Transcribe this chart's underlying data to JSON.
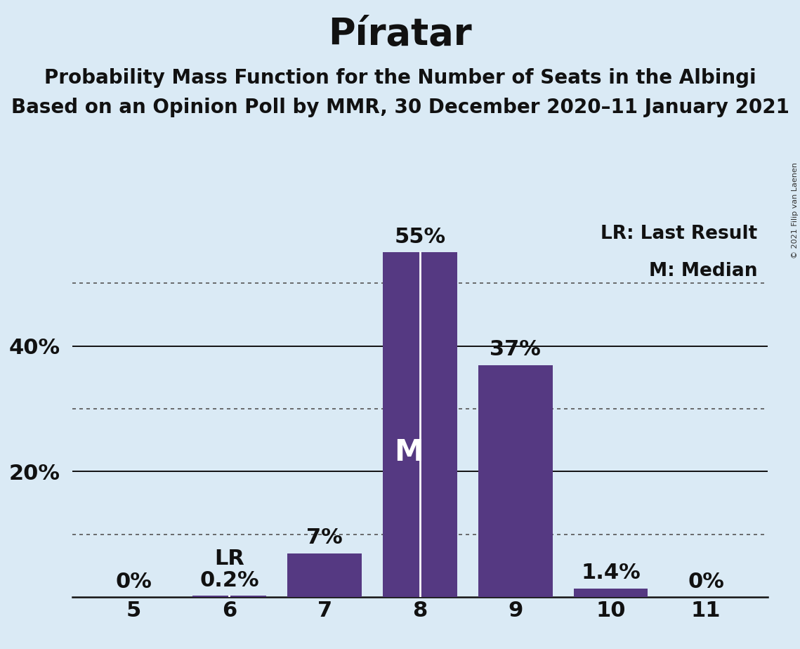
{
  "title": "Píratar",
  "subtitle1": "Probability Mass Function for the Number of Seats in the Albingi",
  "subtitle2": "Based on an Opinion Poll by MMR, 30 December 2020–11 January 2021",
  "copyright": "© 2021 Filip van Laenen",
  "seats": [
    5,
    6,
    7,
    8,
    9,
    10,
    11
  ],
  "probabilities": [
    0.0,
    0.2,
    7.0,
    55.0,
    37.0,
    1.4,
    0.0
  ],
  "bar_color": "#553982",
  "background_color": "#daeaf5",
  "median_seat": 8,
  "last_result_seat": 6,
  "legend_lr": "LR: Last Result",
  "legend_m": "M: Median",
  "median_line_color": "#ffffff",
  "ylabel_ticks": [
    20,
    40
  ],
  "solid_grid_values": [
    20,
    40
  ],
  "dotted_grid_values": [
    10,
    30,
    50
  ],
  "ylim": [
    0,
    60
  ],
  "bar_width": 0.78,
  "bar_label_fontsize": 22,
  "bar_label_color_above": "#111111",
  "tick_fontsize": 22,
  "title_fontsize": 38,
  "subtitle_fontsize": 20,
  "axis_label_color": "#111111"
}
